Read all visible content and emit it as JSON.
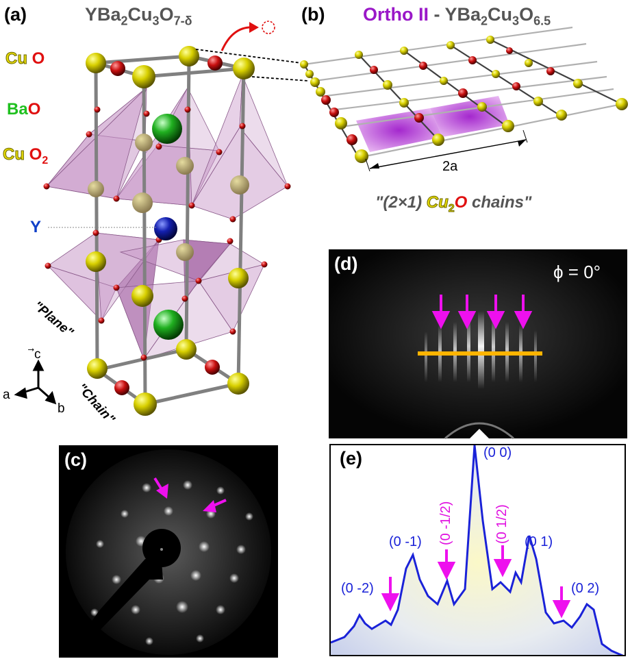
{
  "panels": {
    "a": {
      "label": "(a)",
      "title_base": "YBa",
      "title_sub1": "2",
      "title_mid": "Cu",
      "title_sub2": "3",
      "title_o": "O",
      "title_sub3": "7-δ",
      "layers": {
        "cuo_cu": "Cu",
        "cuo_o": "O",
        "bao_ba": "Ba",
        "bao_o": "O",
        "cuo2_cu": "Cu",
        "cuo2_o": "O",
        "cuo2_sub": "2",
        "y": "Y"
      },
      "plane_label": "\"Plane\"",
      "chain_label": "\"Chain\"",
      "axes": {
        "c": "c",
        "a": "a",
        "b": "b"
      }
    },
    "b": {
      "label": "(b)",
      "title_phase": "Ortho II",
      "title_dash": " - YBa",
      "title_sub1": "2",
      "title_mid": "Cu",
      "title_sub2": "3",
      "title_o": "O",
      "title_sub3": "6.5",
      "spacing": "2a",
      "chains_pre": "\"(2×1) ",
      "chains_cu": "Cu",
      "chains_sub": "2",
      "chains_o": "O",
      "chains_post": " chains\""
    },
    "c": {
      "label": "(c)"
    },
    "d": {
      "label": "(d)",
      "phi": "ϕ = 0°"
    },
    "e": {
      "label": "(e)",
      "integer_peaks": [
        "(0 0)",
        "(0 -1)",
        "(0 1)",
        "(0 -2)",
        "(0 2)"
      ],
      "half_peaks": [
        "(0 -1/2)",
        "(0 1/2)"
      ]
    }
  },
  "colors": {
    "cu": "#d8d000",
    "o": "#d01010",
    "ba": "#20c020",
    "y": "#1420b0",
    "arrow": "#ee10ee",
    "line": "#ffb400",
    "profile": "#1a22d8",
    "ortho": "#9a18c8"
  }
}
